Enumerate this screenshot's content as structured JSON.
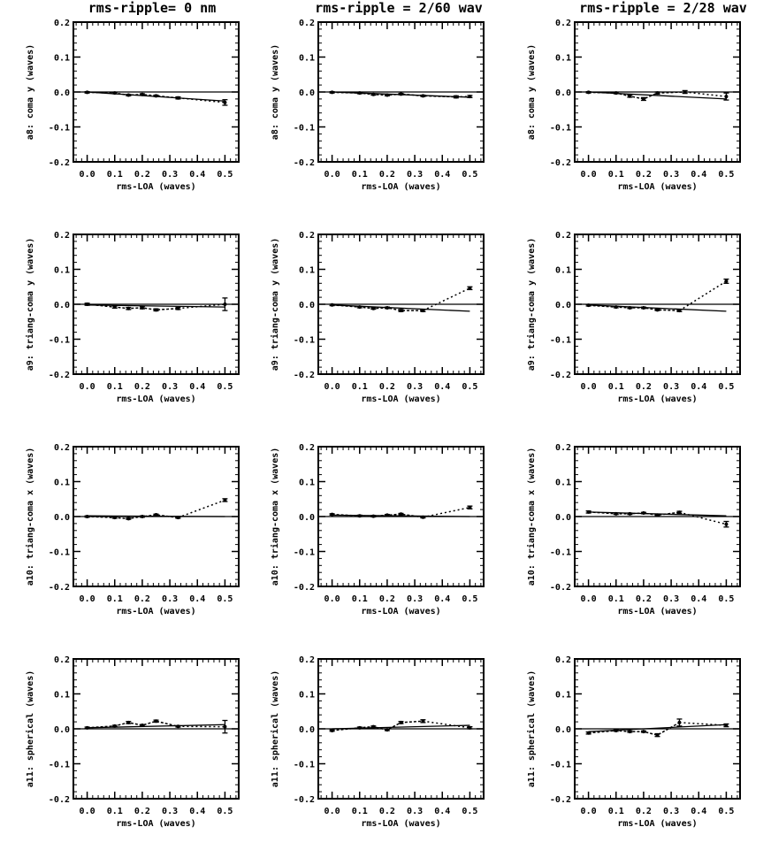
{
  "figure": {
    "column_titles": [
      "rms-ripple= 0 nm",
      "rms-ripple = 2/60 wav",
      "rms-ripple = 2/28 wav"
    ]
  },
  "chart_data": [
    {
      "type": "line",
      "row_label": "a8: coma y (waves)",
      "xlabel": "rms-LOA (waves)",
      "ylabel": "a8: coma y (waves)",
      "xlim": [
        -0.05,
        0.55
      ],
      "ylim": [
        -0.2,
        0.2
      ],
      "xticks": [
        "0.0",
        "0.1",
        "0.2",
        "0.3",
        "0.4",
        "0.5"
      ],
      "yticks": [
        "0.2",
        "0.1",
        "0.0",
        "-0.1",
        "-0.2"
      ],
      "zero_line": true,
      "fit": [
        [
          0,
          0.0
        ],
        [
          0.5,
          -0.026
        ]
      ],
      "series": [
        {
          "x": [
            0.0,
            0.1,
            0.15,
            0.2,
            0.25,
            0.33,
            0.5
          ],
          "y": [
            -0.001,
            -0.003,
            -0.009,
            -0.007,
            -0.011,
            -0.017,
            -0.03
          ],
          "err": [
            0.002,
            0.002,
            0.002,
            0.002,
            0.002,
            0.003,
            0.008
          ]
        }
      ]
    },
    {
      "type": "line",
      "row_label": "a8: coma y (waves)",
      "xlabel": "rms-LOA (waves)",
      "ylabel": "a8: coma y (waves)",
      "xlim": [
        -0.05,
        0.55
      ],
      "ylim": [
        -0.2,
        0.2
      ],
      "xticks": [
        "0.0",
        "0.1",
        "0.2",
        "0.3",
        "0.4",
        "0.5"
      ],
      "yticks": [
        "0.2",
        "0.1",
        "0.0",
        "-0.1",
        "-0.2"
      ],
      "zero_line": true,
      "fit": [
        [
          0,
          0.0
        ],
        [
          0.5,
          -0.015
        ]
      ],
      "series": [
        {
          "x": [
            0.0,
            0.1,
            0.15,
            0.2,
            0.25,
            0.33,
            0.45,
            0.5
          ],
          "y": [
            -0.001,
            -0.003,
            -0.007,
            -0.009,
            -0.006,
            -0.011,
            -0.014,
            -0.013
          ],
          "err": [
            0.002,
            0.002,
            0.002,
            0.002,
            0.002,
            0.002,
            0.003,
            0.003
          ]
        }
      ]
    },
    {
      "type": "line",
      "row_label": "a8: coma y (waves)",
      "xlabel": "rms-LOA (waves)",
      "ylabel": "a8: coma y (waves)",
      "xlim": [
        -0.05,
        0.55
      ],
      "ylim": [
        -0.2,
        0.2
      ],
      "xticks": [
        "0.0",
        "0.1",
        "0.2",
        "0.3",
        "0.4",
        "0.5"
      ],
      "yticks": [
        "0.2",
        "0.1",
        "0.0",
        "-0.1",
        "-0.2"
      ],
      "zero_line": true,
      "fit": [
        [
          0,
          0.0
        ],
        [
          0.5,
          -0.02
        ]
      ],
      "series": [
        {
          "x": [
            0.0,
            0.1,
            0.15,
            0.2,
            0.25,
            0.35,
            0.5
          ],
          "y": [
            -0.001,
            -0.003,
            -0.012,
            -0.02,
            -0.003,
            0.0,
            -0.013
          ],
          "err": [
            0.002,
            0.002,
            0.003,
            0.004,
            0.003,
            0.004,
            0.01
          ]
        }
      ]
    },
    {
      "type": "line",
      "row_label": "a9: triang-coma y (waves)",
      "xlabel": "rms-LOA (waves)",
      "ylabel": "a9: triang-coma y (waves)",
      "xlim": [
        -0.05,
        0.55
      ],
      "ylim": [
        -0.2,
        0.2
      ],
      "xticks": [
        "0.0",
        "0.1",
        "0.2",
        "0.3",
        "0.4",
        "0.5"
      ],
      "yticks": [
        "0.2",
        "0.1",
        "0.0",
        "-0.1",
        "-0.2"
      ],
      "zero_line": true,
      "fit": [
        [
          0,
          -0.002
        ],
        [
          0.5,
          -0.008
        ]
      ],
      "series": [
        {
          "x": [
            0.0,
            0.1,
            0.15,
            0.2,
            0.25,
            0.33,
            0.5
          ],
          "y": [
            0.0,
            -0.008,
            -0.012,
            -0.01,
            -0.016,
            -0.012,
            0.0
          ],
          "err": [
            0.003,
            0.003,
            0.003,
            0.003,
            0.003,
            0.003,
            0.018
          ]
        }
      ]
    },
    {
      "type": "line",
      "row_label": "a9: triang-coma y (waves)",
      "xlabel": "rms-LOA (waves)",
      "ylabel": "a9: triang-coma y (waves)",
      "xlim": [
        -0.05,
        0.55
      ],
      "ylim": [
        -0.2,
        0.2
      ],
      "xticks": [
        "0.0",
        "0.1",
        "0.2",
        "0.3",
        "0.4",
        "0.5"
      ],
      "yticks": [
        "0.2",
        "0.1",
        "0.0",
        "-0.1",
        "-0.2"
      ],
      "zero_line": true,
      "fit": [
        [
          0,
          -0.002
        ],
        [
          0.5,
          -0.02
        ]
      ],
      "series": [
        {
          "x": [
            0.0,
            0.1,
            0.15,
            0.2,
            0.25,
            0.33,
            0.5
          ],
          "y": [
            -0.002,
            -0.008,
            -0.012,
            -0.01,
            -0.018,
            -0.018,
            0.046
          ],
          "err": [
            0.002,
            0.002,
            0.002,
            0.002,
            0.003,
            0.003,
            0.004
          ]
        }
      ]
    },
    {
      "type": "line",
      "row_label": "a9: triang-coma y (waves)",
      "xlabel": "rms-LOA (waves)",
      "ylabel": "a9: triang-coma y (waves)",
      "xlim": [
        -0.05,
        0.55
      ],
      "ylim": [
        -0.2,
        0.2
      ],
      "xticks": [
        "0.0",
        "0.1",
        "0.2",
        "0.3",
        "0.4",
        "0.5"
      ],
      "yticks": [
        "0.2",
        "0.1",
        "0.0",
        "-0.1",
        "-0.2"
      ],
      "zero_line": true,
      "fit": [
        [
          0,
          -0.002
        ],
        [
          0.5,
          -0.02
        ]
      ],
      "series": [
        {
          "x": [
            0.0,
            0.1,
            0.15,
            0.2,
            0.25,
            0.33,
            0.5
          ],
          "y": [
            -0.003,
            -0.008,
            -0.01,
            -0.01,
            -0.016,
            -0.018,
            0.066
          ],
          "err": [
            0.002,
            0.002,
            0.002,
            0.002,
            0.002,
            0.003,
            0.006
          ]
        }
      ]
    },
    {
      "type": "line",
      "row_label": "a10: triang-coma x (waves)",
      "xlabel": "rms-LOA (waves)",
      "ylabel": "a10: triang-coma x (waves)",
      "xlim": [
        -0.05,
        0.55
      ],
      "ylim": [
        -0.2,
        0.2
      ],
      "xticks": [
        "0.0",
        "0.1",
        "0.2",
        "0.3",
        "0.4",
        "0.5"
      ],
      "yticks": [
        "0.2",
        "0.1",
        "0.0",
        "-0.1",
        "-0.2"
      ],
      "zero_line": true,
      "fit": [
        [
          0,
          0.002
        ],
        [
          0.5,
          0.0
        ]
      ],
      "series": [
        {
          "x": [
            0.0,
            0.1,
            0.15,
            0.2,
            0.25,
            0.33,
            0.5
          ],
          "y": [
            0.0,
            -0.003,
            -0.006,
            0.0,
            0.005,
            -0.003,
            0.047
          ],
          "err": [
            0.002,
            0.002,
            0.002,
            0.002,
            0.002,
            0.002,
            0.004
          ]
        }
      ]
    },
    {
      "type": "line",
      "row_label": "a10: triang-coma x (waves)",
      "xlabel": "rms-LOA (waves)",
      "ylabel": "a10: triang-coma x (waves)",
      "xlim": [
        -0.05,
        0.55
      ],
      "ylim": [
        -0.2,
        0.2
      ],
      "xticks": [
        "0.0",
        "0.1",
        "0.2",
        "0.3",
        "0.4",
        "0.5"
      ],
      "yticks": [
        "0.2",
        "0.1",
        "0.0",
        "-0.1",
        "-0.2"
      ],
      "zero_line": true,
      "fit": [
        [
          0,
          0.004
        ],
        [
          0.5,
          0.0
        ]
      ],
      "series": [
        {
          "x": [
            0.0,
            0.1,
            0.15,
            0.2,
            0.25,
            0.33,
            0.5
          ],
          "y": [
            0.006,
            0.002,
            0.001,
            0.004,
            0.007,
            -0.002,
            0.026
          ],
          "err": [
            0.002,
            0.002,
            0.002,
            0.002,
            0.002,
            0.002,
            0.004
          ]
        }
      ]
    },
    {
      "type": "line",
      "row_label": "a10: triang-coma x (waves)",
      "xlabel": "rms-LOA (waves)",
      "ylabel": "a10: triang-coma x (waves)",
      "xlim": [
        -0.05,
        0.55
      ],
      "ylim": [
        -0.2,
        0.2
      ],
      "xticks": [
        "0.0",
        "0.1",
        "0.2",
        "0.3",
        "0.4",
        "0.5"
      ],
      "yticks": [
        "0.2",
        "0.1",
        "0.0",
        "-0.1",
        "-0.2"
      ],
      "zero_line": true,
      "fit": [
        [
          0,
          0.013
        ],
        [
          0.5,
          0.002
        ]
      ],
      "series": [
        {
          "x": [
            0.0,
            0.1,
            0.15,
            0.2,
            0.25,
            0.33,
            0.5
          ],
          "y": [
            0.013,
            0.008,
            0.008,
            0.01,
            0.004,
            0.012,
            -0.022
          ],
          "err": [
            0.003,
            0.002,
            0.002,
            0.002,
            0.002,
            0.003,
            0.008
          ]
        }
      ]
    },
    {
      "type": "line",
      "row_label": "a11: spherical (waves)",
      "xlabel": "rms-LOA (waves)",
      "ylabel": "a11: spherical (waves)",
      "xlim": [
        -0.05,
        0.55
      ],
      "ylim": [
        -0.2,
        0.2
      ],
      "xticks": [
        "0.0",
        "0.1",
        "0.2",
        "0.3",
        "0.4",
        "0.5"
      ],
      "yticks": [
        "0.2",
        "0.1",
        "0.0",
        "-0.1",
        "-0.2"
      ],
      "zero_line": true,
      "fit": [
        [
          0,
          0.003
        ],
        [
          0.5,
          0.012
        ]
      ],
      "series": [
        {
          "x": [
            0.0,
            0.1,
            0.15,
            0.2,
            0.25,
            0.33,
            0.5
          ],
          "y": [
            0.003,
            0.008,
            0.018,
            0.01,
            0.022,
            0.007,
            0.006
          ],
          "err": [
            0.002,
            0.002,
            0.003,
            0.002,
            0.003,
            0.002,
            0.018
          ]
        }
      ]
    },
    {
      "type": "line",
      "row_label": "a11: spherical (waves)",
      "xlabel": "rms-LOA (waves)",
      "ylabel": "a11: spherical (waves)",
      "xlim": [
        -0.05,
        0.55
      ],
      "ylim": [
        -0.2,
        0.2
      ],
      "xticks": [
        "0.0",
        "0.1",
        "0.2",
        "0.3",
        "0.4",
        "0.5"
      ],
      "yticks": [
        "0.2",
        "0.1",
        "0.0",
        "-0.1",
        "-0.2"
      ],
      "zero_line": true,
      "fit": [
        [
          0,
          0.0
        ],
        [
          0.5,
          0.01
        ]
      ],
      "series": [
        {
          "x": [
            0.0,
            0.1,
            0.15,
            0.2,
            0.25,
            0.33,
            0.5
          ],
          "y": [
            -0.005,
            0.003,
            0.006,
            -0.003,
            0.018,
            0.022,
            0.003
          ],
          "err": [
            0.002,
            0.002,
            0.002,
            0.002,
            0.003,
            0.004,
            0.003
          ]
        }
      ]
    },
    {
      "type": "line",
      "row_label": "a11: spherical (waves)",
      "xlabel": "rms-LOA (waves)",
      "ylabel": "a11: spherical (waves)",
      "xlim": [
        -0.05,
        0.55
      ],
      "ylim": [
        -0.2,
        0.2
      ],
      "xticks": [
        "0.0",
        "0.1",
        "0.2",
        "0.3",
        "0.4",
        "0.5"
      ],
      "yticks": [
        "0.2",
        "0.1",
        "0.0",
        "-0.1",
        "-0.2"
      ],
      "zero_line": true,
      "fit": [
        [
          0,
          -0.008
        ],
        [
          0.5,
          0.012
        ]
      ],
      "series": [
        {
          "x": [
            0.0,
            0.1,
            0.15,
            0.2,
            0.25,
            0.33,
            0.5
          ],
          "y": [
            -0.012,
            -0.005,
            -0.008,
            -0.008,
            -0.018,
            0.018,
            0.01
          ],
          "err": [
            0.003,
            0.002,
            0.002,
            0.002,
            0.004,
            0.01,
            0.004
          ]
        }
      ]
    }
  ]
}
